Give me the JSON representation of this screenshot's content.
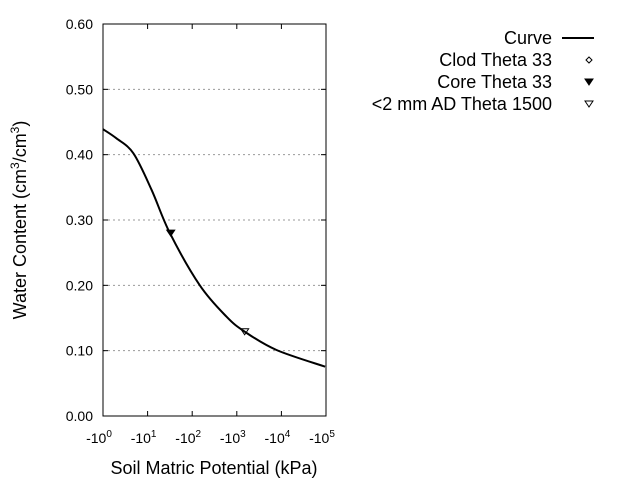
{
  "chart_data": {
    "type": "line",
    "xlabel": "Soil Matric Potential (kPa)",
    "ylabel_parts": {
      "pre": "Water Content (cm",
      "sup1": "3",
      "mid": "/cm",
      "sup2": "3",
      "post": ")"
    },
    "x_scale": "log",
    "xlim": [
      1,
      100000
    ],
    "ylim": [
      0,
      0.6
    ],
    "x_ticks": [
      {
        "base": "-10",
        "exp": "0",
        "value": 1
      },
      {
        "base": "-10",
        "exp": "1",
        "value": 10
      },
      {
        "base": "-10",
        "exp": "2",
        "value": 100
      },
      {
        "base": "-10",
        "exp": "3",
        "value": 1000
      },
      {
        "base": "-10",
        "exp": "4",
        "value": 10000
      },
      {
        "base": "-10",
        "exp": "5",
        "value": 100000
      }
    ],
    "y_ticks": [
      "0.00",
      "0.10",
      "0.20",
      "0.30",
      "0.40",
      "0.50",
      "0.60"
    ],
    "grid": "horizontal dashed",
    "legend_position": "top-right",
    "series": [
      {
        "name": "Curve",
        "kind": "line",
        "color": "#000000",
        "x": [
          1,
          2,
          4.8,
          12.3,
          31.6,
          148,
          589,
          1510,
          7760,
          95500
        ],
        "y": [
          0.439,
          0.425,
          0.402,
          0.346,
          0.28,
          0.2,
          0.152,
          0.129,
          0.101,
          0.0755
        ]
      },
      {
        "name": "Clod Theta 33",
        "kind": "marker",
        "marker": "open-diamond",
        "x": [],
        "y": []
      },
      {
        "name": "Core Theta 33",
        "kind": "marker",
        "marker": "filled-down-triangle",
        "x": [
          33
        ],
        "y": [
          0.28
        ]
      },
      {
        "name": "<2 mm AD Theta 1500",
        "kind": "marker",
        "marker": "open-down-triangle",
        "x": [
          1500
        ],
        "y": [
          0.129
        ]
      }
    ]
  }
}
